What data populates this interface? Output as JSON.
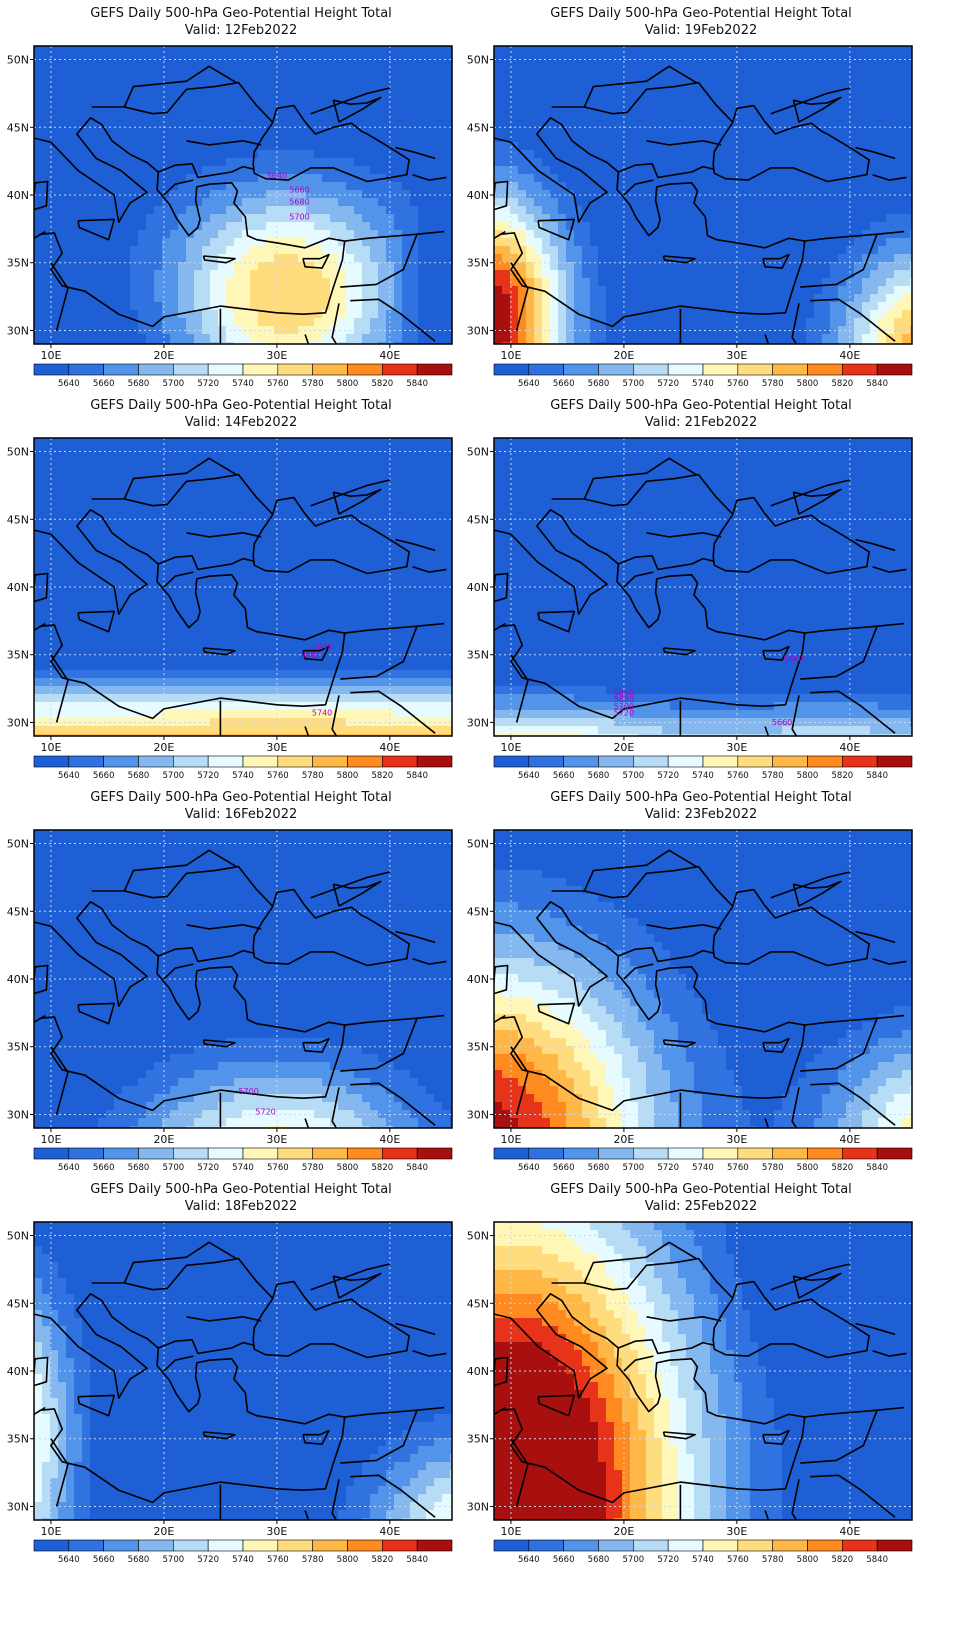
{
  "figure": {
    "title": "GEFS Daily 500-hPa Geo-Potential Height Total",
    "valid_prefix": "Valid:",
    "x_ticks": [
      "10E",
      "20E",
      "30E",
      "40E"
    ],
    "y_ticks": [
      "50N",
      "45N",
      "40N",
      "35N",
      "30N"
    ],
    "lon_range": [
      8.5,
      45.5
    ],
    "lat_range": [
      29,
      51
    ]
  },
  "colorbar": {
    "levels": [
      "5640",
      "5660",
      "5680",
      "5700",
      "5720",
      "5740",
      "5760",
      "5780",
      "5800",
      "5820",
      "5840"
    ],
    "colors": [
      "#1f5fd6",
      "#2f72e0",
      "#5194ea",
      "#86b8f0",
      "#b6dcf6",
      "#e6fbff",
      "#fff7b8",
      "#ffdc7d",
      "#ffb847",
      "#ff8a1f",
      "#e8331b",
      "#a80f0f"
    ]
  },
  "colors": {
    "land_border": "#000000",
    "contour": "#9a20d8",
    "grid": "#c8d8f0",
    "contour_label": "#b000c8"
  },
  "panels": [
    {
      "valid": "12Feb2022",
      "kind": "ridge-east",
      "contour_labels": [
        "5640",
        "5660",
        "5680",
        "5700"
      ]
    },
    {
      "valid": "19Feb2022",
      "kind": "ridge-west-and-southeast",
      "contour_labels": []
    },
    {
      "valid": "14Feb2022",
      "kind": "south-band",
      "contour_labels": [
        "5640",
        "5660",
        "5740"
      ]
    },
    {
      "valid": "21Feb2022",
      "kind": "south-band-west",
      "contour_labels": [
        "5660",
        "5680",
        "5700",
        "5720",
        "5640",
        "5660"
      ]
    },
    {
      "valid": "16Feb2022",
      "kind": "south-dome",
      "contour_labels": [
        "5700",
        "5720"
      ]
    },
    {
      "valid": "23Feb2022",
      "kind": "ridge-southwest",
      "contour_labels": []
    },
    {
      "valid": "18Feb2022",
      "kind": "edges",
      "contour_labels": []
    },
    {
      "valid": "25Feb2022",
      "kind": "ridge-strong-west",
      "contour_labels": []
    }
  ]
}
